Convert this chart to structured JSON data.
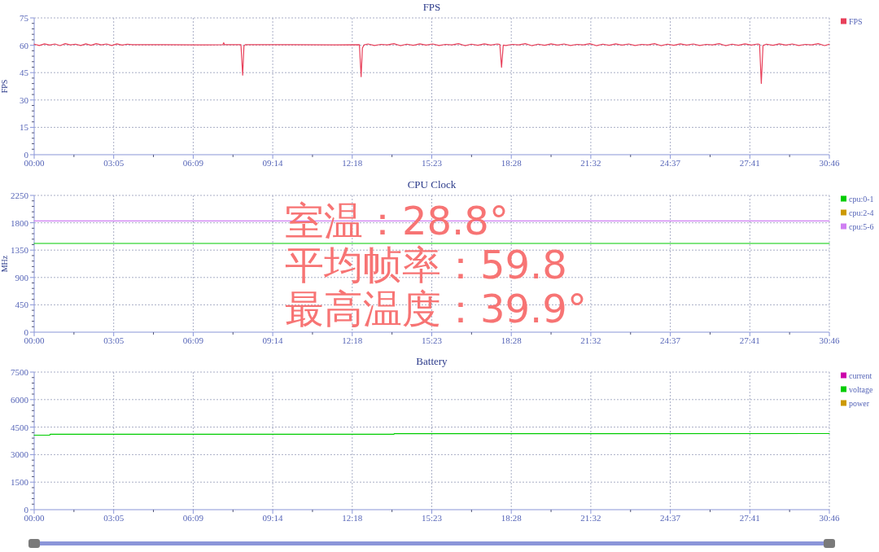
{
  "chart_data": [
    {
      "type": "line",
      "title": "FPS",
      "ylabel": "FPS",
      "x": [
        0,
        12,
        24,
        36,
        48,
        60,
        72,
        84,
        96,
        108,
        120,
        132,
        144,
        156,
        168,
        180,
        192,
        204,
        216,
        228,
        300,
        380,
        438,
        440,
        442,
        480,
        484,
        487,
        490,
        600,
        700,
        755,
        759,
        762,
        766,
        775,
        790,
        805,
        820,
        835,
        850,
        865,
        880,
        895,
        910,
        925,
        940,
        955,
        970,
        985,
        1000,
        1015,
        1030,
        1045,
        1060,
        1075,
        1081,
        1085,
        1089,
        1095,
        1110,
        1125,
        1140,
        1155,
        1170,
        1185,
        1200,
        1215,
        1230,
        1245,
        1260,
        1275,
        1290,
        1305,
        1320,
        1335,
        1350,
        1365,
        1380,
        1395,
        1410,
        1425,
        1440,
        1455,
        1470,
        1485,
        1500,
        1515,
        1530,
        1545,
        1560,
        1575,
        1590,
        1605,
        1620,
        1635,
        1650,
        1665,
        1680,
        1684,
        1688,
        1692,
        1700,
        1715,
        1730,
        1745,
        1760,
        1775,
        1790,
        1805,
        1820,
        1835,
        1846
      ],
      "series": [
        {
          "name": "FPS",
          "color": "#e8405a",
          "values": [
            60.6,
            59.9,
            60.8,
            60.1,
            60.7,
            59.8,
            60.9,
            60.2,
            60.6,
            59.9,
            60.8,
            60.0,
            60.9,
            60.2,
            60.7,
            59.9,
            60.8,
            60.1,
            60.6,
            60.3,
            60.3,
            60.2,
            60.3,
            61.4,
            60.3,
            60.3,
            43.6,
            59.6,
            60.3,
            60.3,
            60.2,
            60.3,
            42.8,
            58.5,
            60.2,
            60.7,
            59.9,
            60.5,
            60.2,
            60.9,
            59.8,
            60.6,
            60.0,
            60.8,
            60.1,
            60.7,
            59.9,
            60.5,
            60.2,
            60.9,
            59.8,
            60.6,
            60.0,
            60.8,
            60.1,
            60.7,
            60.4,
            47.9,
            60.1,
            59.9,
            60.5,
            60.2,
            60.9,
            59.8,
            60.6,
            60.0,
            60.8,
            60.1,
            60.7,
            59.9,
            60.5,
            60.2,
            60.9,
            59.8,
            60.6,
            60.0,
            60.8,
            60.1,
            60.7,
            59.9,
            60.5,
            60.2,
            60.9,
            59.8,
            60.6,
            60.0,
            60.8,
            60.1,
            60.7,
            59.9,
            60.5,
            60.2,
            60.9,
            59.8,
            60.6,
            60.0,
            60.8,
            60.1,
            60.7,
            60.5,
            39.1,
            59.9,
            60.6,
            60.0,
            60.8,
            60.1,
            60.7,
            59.9,
            60.5,
            60.2,
            60.9,
            59.8,
            60.6
          ]
        }
      ],
      "xlim": [
        0,
        1846
      ],
      "xticks": [
        {
          "value": 0,
          "label": "00:00"
        },
        {
          "value": 184.6,
          "label": "03:05"
        },
        {
          "value": 369.2,
          "label": "06:09"
        },
        {
          "value": 553.8,
          "label": "09:14"
        },
        {
          "value": 738.4,
          "label": "12:18"
        },
        {
          "value": 923,
          "label": "15:23"
        },
        {
          "value": 1107.6,
          "label": "18:28"
        },
        {
          "value": 1292.2,
          "label": "21:32"
        },
        {
          "value": 1476.8,
          "label": "24:37"
        },
        {
          "value": 1661.4,
          "label": "27:41"
        },
        {
          "value": 1846,
          "label": "30:46"
        }
      ],
      "ylim": [
        0,
        75
      ],
      "yticks": [
        0,
        15,
        30,
        45,
        60,
        75
      ],
      "grid": true,
      "legend": "top right"
    },
    {
      "type": "line",
      "title": "CPU Clock",
      "ylabel": "MHz",
      "x": [
        0,
        1846
      ],
      "series": [
        {
          "name": "cpu:0-1",
          "color": "#00cc00",
          "values": [
            1460,
            1460
          ]
        },
        {
          "name": "cpu:2-4",
          "color": "#cc9900",
          "values": [
            null,
            null
          ]
        },
        {
          "name": "cpu:5-6",
          "color": "#cf7ef2",
          "values": [
            1830,
            1830
          ]
        }
      ],
      "xlim": [
        0,
        1846
      ],
      "xticks": [
        {
          "value": 0,
          "label": "00:00"
        },
        {
          "value": 184.6,
          "label": "03:05"
        },
        {
          "value": 369.2,
          "label": "06:09"
        },
        {
          "value": 553.8,
          "label": "09:14"
        },
        {
          "value": 738.4,
          "label": "12:18"
        },
        {
          "value": 923,
          "label": "15:23"
        },
        {
          "value": 1107.6,
          "label": "18:28"
        },
        {
          "value": 1292.2,
          "label": "21:32"
        },
        {
          "value": 1476.8,
          "label": "24:37"
        },
        {
          "value": 1661.4,
          "label": "27:41"
        },
        {
          "value": 1846,
          "label": "30:46"
        }
      ],
      "ylim": [
        0,
        2250
      ],
      "yticks": [
        0,
        450,
        900,
        1350,
        1800,
        2250
      ],
      "grid": true,
      "legend": "top right",
      "annotations": [
        "室温：28.8°",
        "平均帧率：59.8",
        "最高温度：39.9°"
      ]
    },
    {
      "type": "line",
      "title": "Battery",
      "x": [
        0,
        36,
        37,
        835,
        836,
        1820,
        1846
      ],
      "series": [
        {
          "name": "current",
          "color": "#cc00aa",
          "values": [
            null,
            null,
            null,
            null,
            null,
            null,
            null
          ]
        },
        {
          "name": "voltage",
          "color": "#00cc00",
          "values": [
            4060,
            4060,
            4110,
            4110,
            4140,
            4150,
            4150
          ]
        },
        {
          "name": "power",
          "color": "#cc9900",
          "values": [
            null,
            null,
            null,
            null,
            null,
            null,
            null
          ]
        }
      ],
      "xlim": [
        0,
        1846
      ],
      "xticks": [
        {
          "value": 0,
          "label": "00:00"
        },
        {
          "value": 184.6,
          "label": "03:05"
        },
        {
          "value": 369.2,
          "label": "06:09"
        },
        {
          "value": 553.8,
          "label": "09:14"
        },
        {
          "value": 738.4,
          "label": "12:18"
        },
        {
          "value": 923,
          "label": "15:23"
        },
        {
          "value": 1107.6,
          "label": "18:28"
        },
        {
          "value": 1292.2,
          "label": "21:32"
        },
        {
          "value": 1476.8,
          "label": "24:37"
        },
        {
          "value": 1661.4,
          "label": "27:41"
        },
        {
          "value": 1846,
          "label": "30:46"
        }
      ],
      "ylim": [
        0,
        7500
      ],
      "yticks": [
        0,
        1500,
        3000,
        4500,
        6000,
        7500
      ],
      "grid": true,
      "legend": "top right"
    }
  ]
}
